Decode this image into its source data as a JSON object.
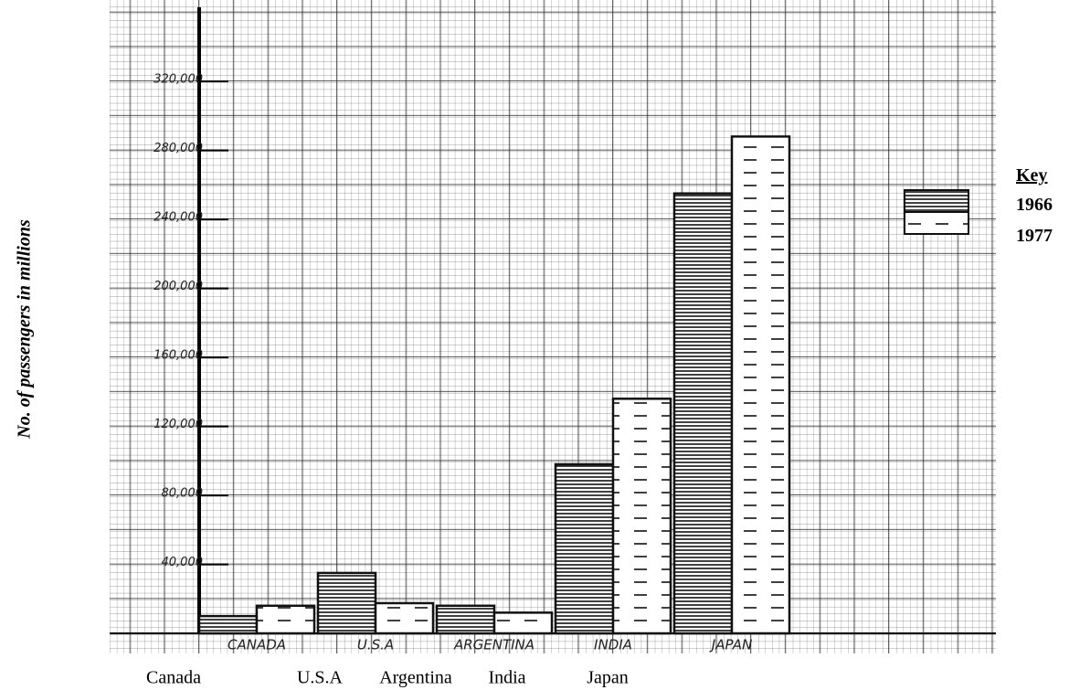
{
  "chart_data": {
    "type": "bar",
    "y_label": "No. of passengers in millions",
    "categories": [
      "Canada",
      "U.S.A",
      "Argentina",
      "India",
      "Japan"
    ],
    "paper_labels": [
      "CANADA",
      "U.S.A",
      "ARGENTINA",
      "INDIA",
      "JAPAN"
    ],
    "series": [
      {
        "name": "1966",
        "color": "#111111",
        "values": [
          10000,
          35000,
          16000,
          98000,
          255000
        ]
      },
      {
        "name": "1977",
        "color": "#111111",
        "values": [
          16000,
          17500,
          12000,
          136000,
          288000
        ]
      }
    ],
    "legend_title": "Key",
    "legend": "right",
    "ylim": [
      0,
      360000
    ],
    "yticks": [
      {
        "value": 40000,
        "label": "40,000"
      },
      {
        "value": 80000,
        "label": "80,000"
      },
      {
        "value": 120000,
        "label": "120,000"
      },
      {
        "value": 160000,
        "label": "160,000"
      },
      {
        "value": 200000,
        "label": "200,000"
      },
      {
        "value": 240000,
        "label": "240,000"
      },
      {
        "value": 280000,
        "label": "280,000"
      },
      {
        "value": 320000,
        "label": "320,000"
      }
    ]
  }
}
